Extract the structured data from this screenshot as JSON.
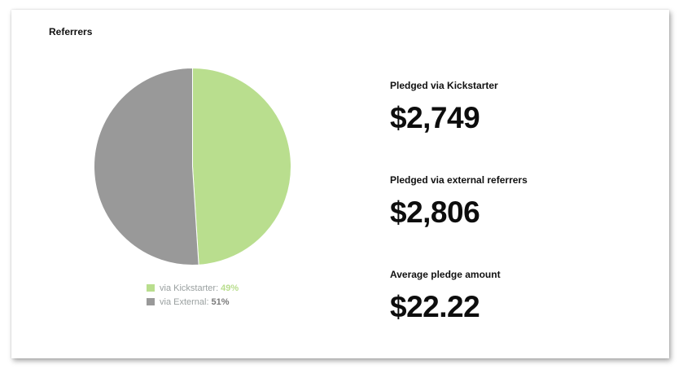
{
  "card": {
    "title": "Referrers"
  },
  "chart_data": {
    "type": "pie",
    "categories": [
      "via Kickstarter",
      "via External"
    ],
    "values": [
      49,
      51
    ],
    "value_labels": [
      "49%",
      "51%"
    ],
    "colors": [
      "#b9de8e",
      "#999999"
    ]
  },
  "legend": [
    {
      "label": "via Kickstarter:",
      "pct": "49%",
      "color": "#b9de8e"
    },
    {
      "label": "via External:",
      "pct": "51%",
      "color": "#999999"
    }
  ],
  "stats": [
    {
      "label": "Pledged via Kickstarter",
      "value": "$2,749"
    },
    {
      "label": "Pledged via external referrers",
      "value": "$2,806"
    },
    {
      "label": "Average pledge amount",
      "value": "$22.22"
    }
  ]
}
